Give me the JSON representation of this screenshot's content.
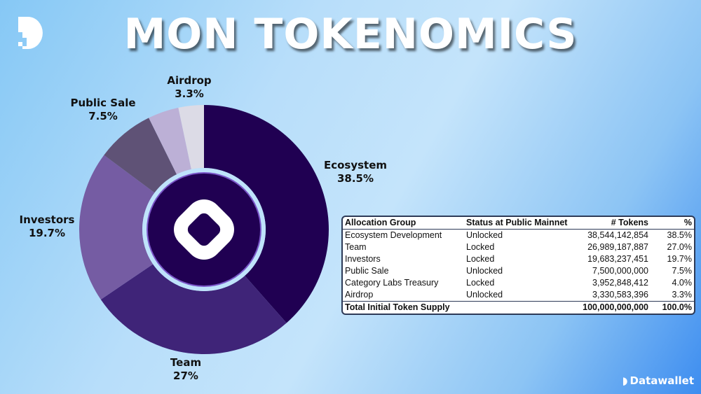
{
  "title": "MON TOKENOMICS",
  "brand": {
    "name": "Datawallet"
  },
  "chart_data": {
    "type": "pie",
    "style": "donut",
    "start": "top, clockwise",
    "slices": [
      {
        "label": "Ecosystem",
        "value": 38.5,
        "display": "38.5%",
        "color": "#200052"
      },
      {
        "label": "Team",
        "value": 27.0,
        "display": "27%",
        "color": "#3f2478"
      },
      {
        "label": "Investors",
        "value": 19.7,
        "display": "19.7%",
        "color": "#755ca3"
      },
      {
        "label": "Public Sale",
        "value": 7.5,
        "display": "7.5%",
        "color": "#5f5276"
      },
      {
        "label": "",
        "value": 4.0,
        "display": "",
        "color": "#bcb0d6"
      },
      {
        "label": "Airdrop",
        "value": 3.3,
        "display": "3.3%",
        "color": "#dcdbe6"
      }
    ]
  },
  "table": {
    "headers": [
      "Allocation Group",
      "Status at Public Mainnet",
      "# Tokens",
      "%"
    ],
    "rows": [
      [
        "Ecosystem Development",
        "Unlocked",
        "38,544,142,854",
        "38.5%"
      ],
      [
        "Team",
        "Locked",
        "26,989,187,887",
        "27.0%"
      ],
      [
        "Investors",
        "Locked",
        "19,683,237,451",
        "19.7%"
      ],
      [
        "Public Sale",
        "Unlocked",
        "7,500,000,000",
        "7.5%"
      ],
      [
        "Category Labs Treasury",
        "Locked",
        "3,952,848,412",
        "4.0%"
      ],
      [
        "Airdrop",
        "Unlocked",
        "3,330,583,396",
        "3.3%"
      ]
    ],
    "total": [
      "Total Initial Token Supply",
      "",
      "100,000,000,000",
      "100.0%"
    ]
  }
}
